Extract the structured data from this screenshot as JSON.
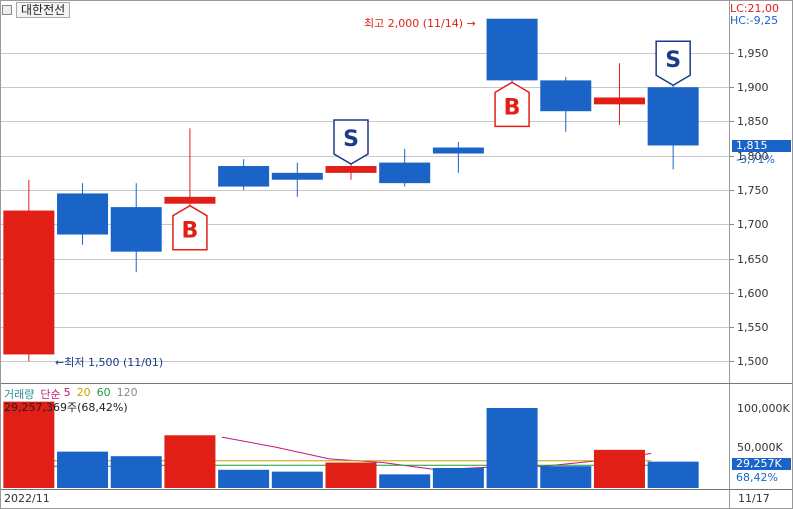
{
  "stock": {
    "name": "대한전선"
  },
  "info": {
    "lc": "LC:21,00",
    "hc": "HC:-9,25"
  },
  "y_axis": {
    "ticks": [
      "1,950",
      "1,900",
      "1,850",
      "1,800",
      "1,750",
      "1,700",
      "1,650",
      "1,600",
      "1,550",
      "1,500"
    ]
  },
  "current": {
    "price": "1,815",
    "change": "-3,71%"
  },
  "annotations": {
    "high": "최고 2,000 (11/14) →",
    "low": "←최저 1,500 (11/01)"
  },
  "volume": {
    "legend": [
      {
        "label": "거래량",
        "color": "#2a8f8f"
      },
      {
        "label": "단순",
        "color": "#c2187a"
      },
      {
        "label": "5",
        "color": "#c2187a"
      },
      {
        "label": "20",
        "color": "#c8a000"
      },
      {
        "label": "60",
        "color": "#1a9a3a"
      },
      {
        "label": "120",
        "color": "#888888"
      }
    ],
    "total": "29,257,369주(68,42%)",
    "ticks": [
      "100,000K",
      "50,000K"
    ],
    "current": "29,257K",
    "current_pct": "68,42%"
  },
  "dates": {
    "start": "2022/11",
    "end": "11/17"
  },
  "colors": {
    "up": "#e21f17",
    "down": "#1a64c8",
    "grid": "#c8c8c8"
  },
  "chart_data": {
    "type": "candlestick",
    "candles": [
      {
        "open": 1510,
        "close": 1720,
        "high": 1765,
        "low": 1500,
        "volume": 95000
      },
      {
        "open": 1745,
        "close": 1685,
        "high": 1760,
        "low": 1670,
        "volume": 40000
      },
      {
        "open": 1725,
        "close": 1660,
        "high": 1760,
        "low": 1630,
        "volume": 35000
      },
      {
        "open": 1730,
        "close": 1740,
        "high": 1840,
        "low": 1725,
        "volume": 58000
      },
      {
        "open": 1785,
        "close": 1755,
        "high": 1795,
        "low": 1750,
        "volume": 20000
      },
      {
        "open": 1775,
        "close": 1765,
        "high": 1790,
        "low": 1740,
        "volume": 18000
      },
      {
        "open": 1775,
        "close": 1785,
        "high": 1795,
        "low": 1765,
        "volume": 28000
      },
      {
        "open": 1790,
        "close": 1760,
        "high": 1810,
        "low": 1755,
        "volume": 15000
      },
      {
        "open": 1812,
        "close": 1807,
        "high": 1820,
        "low": 1775,
        "volume": 22000
      },
      {
        "open": 2000,
        "close": 1910,
        "high": 2000,
        "low": 1905,
        "volume": 88000
      },
      {
        "open": 1910,
        "close": 1865,
        "high": 1915,
        "low": 1835,
        "volume": 24000
      },
      {
        "open": 1875,
        "close": 1885,
        "high": 1935,
        "low": 1845,
        "volume": 42000
      },
      {
        "open": 1900,
        "close": 1815,
        "high": 1920,
        "low": 1780,
        "volume": 29000
      }
    ],
    "signals": [
      {
        "index": 3,
        "type": "B"
      },
      {
        "index": 6,
        "type": "S"
      },
      {
        "index": 9,
        "type": "B"
      },
      {
        "index": 12,
        "type": "S"
      }
    ],
    "ma_lines": [
      {
        "name": "5",
        "color": "#c2187a",
        "values": [
          null,
          null,
          null,
          null,
          56000,
          45000,
          32000,
          28000,
          20000,
          23000,
          24000,
          30000,
          38000
        ]
      },
      {
        "name": "20",
        "color": "#c8a000",
        "values": [
          30000,
          30000,
          30000,
          30000,
          30000,
          30000,
          30000,
          30000,
          30000,
          30000,
          30000,
          30000,
          30000
        ]
      },
      {
        "name": "60",
        "color": "#1a9a3a",
        "values": [
          24000,
          24000,
          24000,
          25000,
          25000,
          25000,
          25000,
          25000,
          25000,
          25000,
          25000,
          25000,
          25000
        ]
      }
    ],
    "y_range": [
      1480,
      2020
    ],
    "volume_range": [
      0,
      110000
    ]
  }
}
